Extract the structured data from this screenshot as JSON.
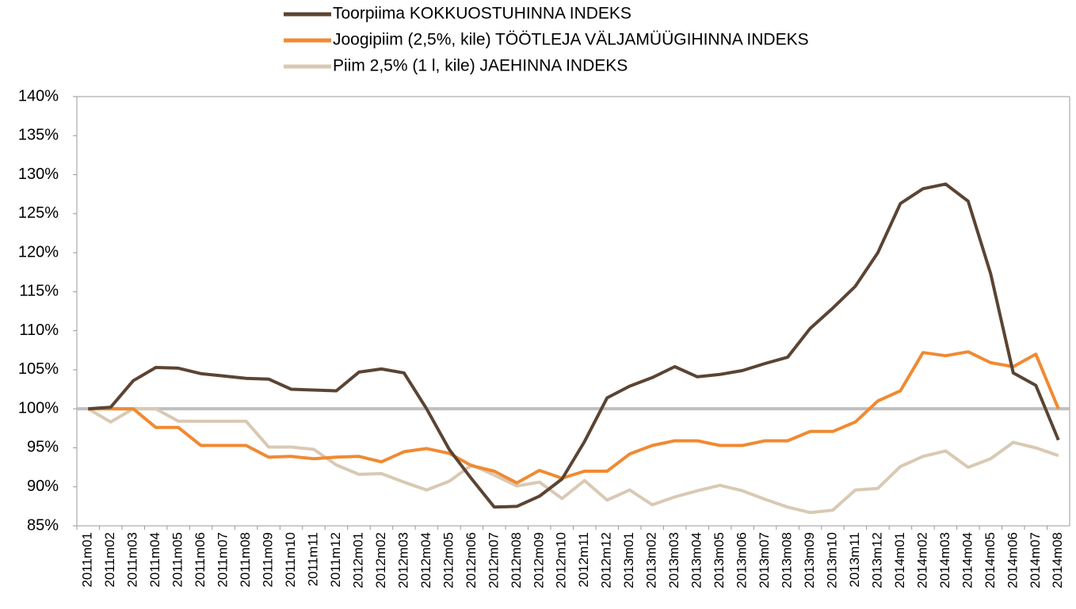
{
  "chart_data": {
    "type": "line",
    "categories": [
      "2011m01",
      "2011m02",
      "2011m03",
      "2011m04",
      "2011m05",
      "2011m06",
      "2011m07",
      "2011m08",
      "2011m09",
      "2011m10",
      "2011m11",
      "2011m12",
      "2012m01",
      "2012m02",
      "2012m03",
      "2012m04",
      "2012m05",
      "2012m06",
      "2012m07",
      "2012m08",
      "2012m09",
      "2012m10",
      "2012m11",
      "2012m12",
      "2013m01",
      "2013m02",
      "2013m03",
      "2013m04",
      "2013m05",
      "2013m06",
      "2013m07",
      "2013m08",
      "2013m09",
      "2013m10",
      "2013m11",
      "2013m12",
      "2014m01",
      "2014m02",
      "2014m03",
      "2014m04",
      "2014m05",
      "2014m06",
      "2014m07",
      "2014m08"
    ],
    "series": [
      {
        "name": "Toorpiima KOKKUOSTUHINNA INDEKS",
        "color": "#5b4433",
        "values": [
          100,
          100.2,
          103.6,
          105.3,
          105.2,
          104.5,
          104.2,
          103.9,
          103.8,
          102.5,
          102.4,
          102.3,
          104.7,
          105.1,
          104.6,
          100.0,
          94.8,
          91.0,
          87.4,
          87.5,
          88.8,
          91.0,
          95.8,
          101.4,
          102.9,
          104.0,
          105.4,
          104.1,
          104.4,
          104.9,
          105.8,
          106.6,
          110.3,
          112.9,
          115.7,
          120.0,
          126.3,
          128.2,
          128.8,
          126.6,
          117.3,
          104.6,
          103.0,
          96.0
        ]
      },
      {
        "name": "Joogipiim (2,5%, kile) TÖÖTLEJA VÄLJAMÜÜGIHINNA INDEKS",
        "color": "#f08a32",
        "values": [
          100,
          100,
          100,
          97.6,
          97.6,
          95.3,
          95.3,
          95.3,
          93.8,
          93.9,
          93.6,
          93.8,
          93.9,
          93.2,
          94.5,
          94.9,
          94.3,
          92.7,
          92.0,
          90.5,
          92.1,
          91.1,
          92.0,
          92.0,
          94.2,
          95.3,
          95.9,
          95.9,
          95.3,
          95.3,
          95.9,
          95.9,
          97.1,
          97.1,
          98.3,
          101.0,
          102.3,
          107.2,
          106.8,
          107.3,
          105.9,
          105.4,
          107.0,
          100.0
        ]
      },
      {
        "name": "Piim 2,5% (1 l, kile) JAEHINNA INDEKS",
        "color": "#d9c9b4",
        "values": [
          100,
          98.3,
          100,
          100,
          98.4,
          98.4,
          98.4,
          98.4,
          95.1,
          95.1,
          94.8,
          92.8,
          91.6,
          91.7,
          90.6,
          89.6,
          90.7,
          92.8,
          91.5,
          90.1,
          90.6,
          88.5,
          90.8,
          88.3,
          89.6,
          87.7,
          88.7,
          89.5,
          90.2,
          89.5,
          88.4,
          87.4,
          86.7,
          87.0,
          89.6,
          89.8,
          92.6,
          93.9,
          94.6,
          92.5,
          93.6,
          95.7,
          95.0,
          94.0
        ]
      }
    ],
    "ylim": [
      85,
      140
    ],
    "yticks": [
      {
        "value": 85,
        "label": "85%"
      },
      {
        "value": 90,
        "label": "90%"
      },
      {
        "value": 95,
        "label": "95%"
      },
      {
        "value": 100,
        "label": "100%"
      },
      {
        "value": 105,
        "label": "105%"
      },
      {
        "value": 110,
        "label": "110%"
      },
      {
        "value": 115,
        "label": "115%"
      },
      {
        "value": 120,
        "label": "120%"
      },
      {
        "value": 125,
        "label": "125%"
      },
      {
        "value": 130,
        "label": "130%"
      },
      {
        "value": 135,
        "label": "135%"
      },
      {
        "value": 140,
        "label": "140%"
      }
    ],
    "reference_line": {
      "value": 100,
      "color": "#bfbfbf"
    },
    "legend": "top"
  }
}
